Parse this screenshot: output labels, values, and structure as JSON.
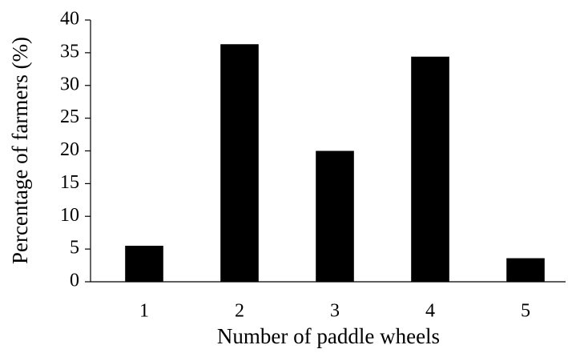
{
  "chart_data": {
    "type": "bar",
    "x_label": "Number of paddle wheels",
    "y_label": "Percentage of farmers (%)",
    "categories": [
      "1",
      "2",
      "3",
      "4",
      "5"
    ],
    "values": [
      5.5,
      36.3,
      20,
      34.4,
      3.6
    ],
    "color": "#000000",
    "ylim": [
      0,
      40
    ],
    "yticks": [
      0,
      5,
      10,
      15,
      20,
      25,
      30,
      35,
      40
    ],
    "grid": false
  }
}
